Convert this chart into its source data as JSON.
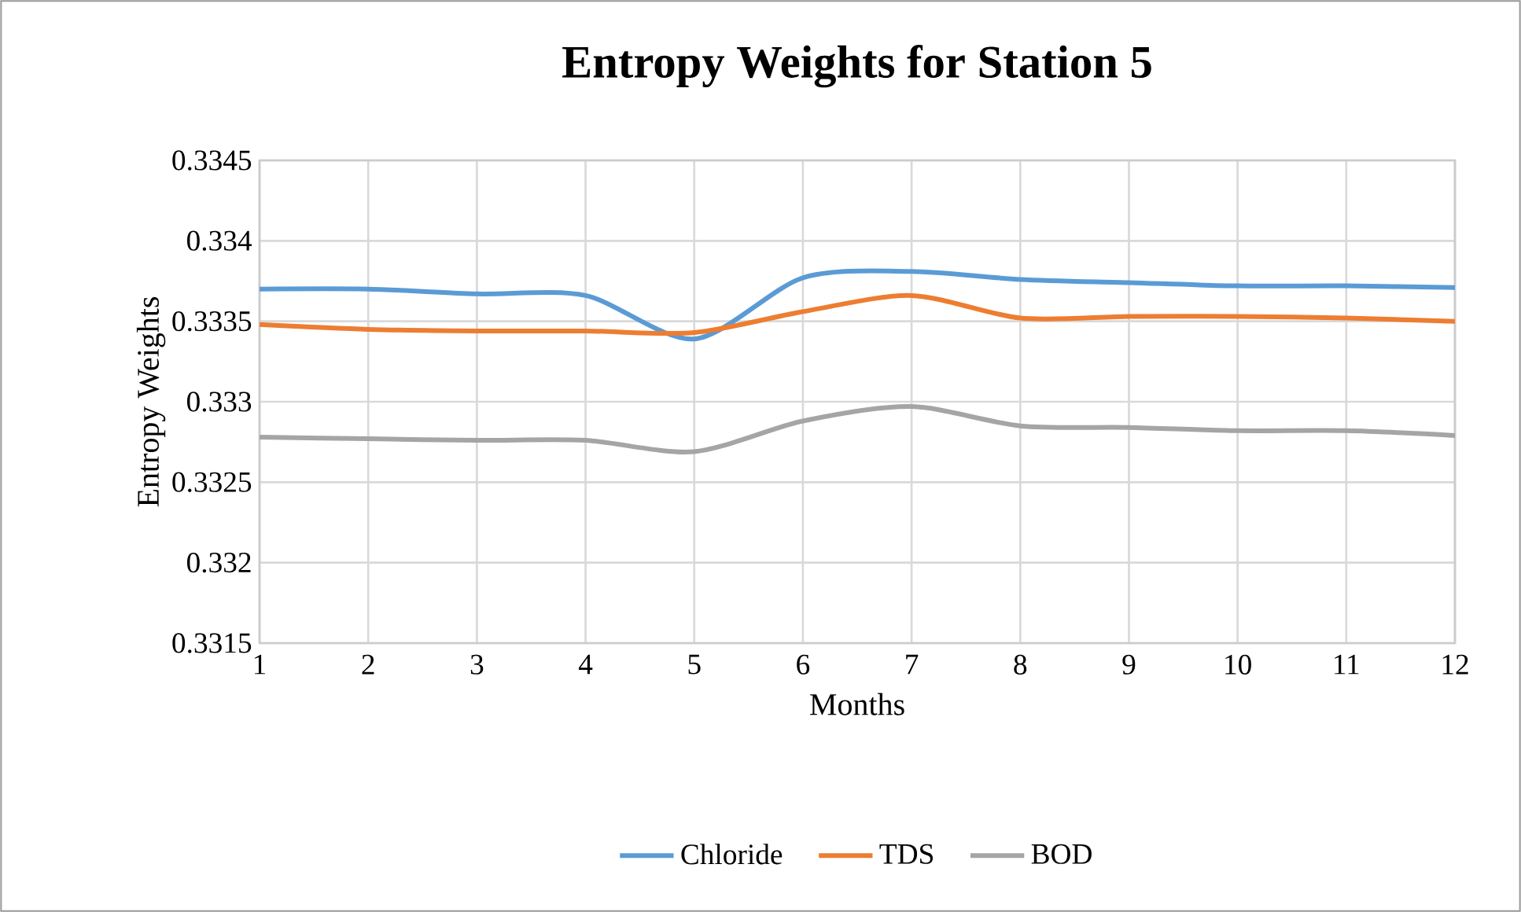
{
  "chart_data": {
    "type": "line",
    "title": "Entropy Weights for Station 5",
    "xlabel": "Months",
    "ylabel": "Entropy Weights",
    "categories": [
      "1",
      "2",
      "3",
      "4",
      "5",
      "6",
      "7",
      "8",
      "9",
      "10",
      "11",
      "12"
    ],
    "series": [
      {
        "name": "Chloride",
        "color": "#5b9bd5",
        "values": [
          0.3337,
          0.3337,
          0.33367,
          0.33366,
          0.33339,
          0.33377,
          0.33381,
          0.33376,
          0.33374,
          0.33372,
          0.33372,
          0.33371
        ]
      },
      {
        "name": "TDS",
        "color": "#ed7d31",
        "values": [
          0.33348,
          0.33345,
          0.33344,
          0.33344,
          0.33343,
          0.33356,
          0.33366,
          0.33352,
          0.33353,
          0.33353,
          0.33352,
          0.3335
        ]
      },
      {
        "name": "BOD",
        "color": "#a5a5a5",
        "values": [
          0.33278,
          0.33277,
          0.33276,
          0.33276,
          0.33269,
          0.33288,
          0.33297,
          0.33285,
          0.33284,
          0.33282,
          0.33282,
          0.33279
        ]
      }
    ],
    "ylim": [
      0.3315,
      0.3345
    ],
    "yticks": [
      0.3315,
      0.332,
      0.3325,
      0.333,
      0.3335,
      0.334,
      0.3345
    ],
    "grid": true,
    "legend": "bottom"
  }
}
